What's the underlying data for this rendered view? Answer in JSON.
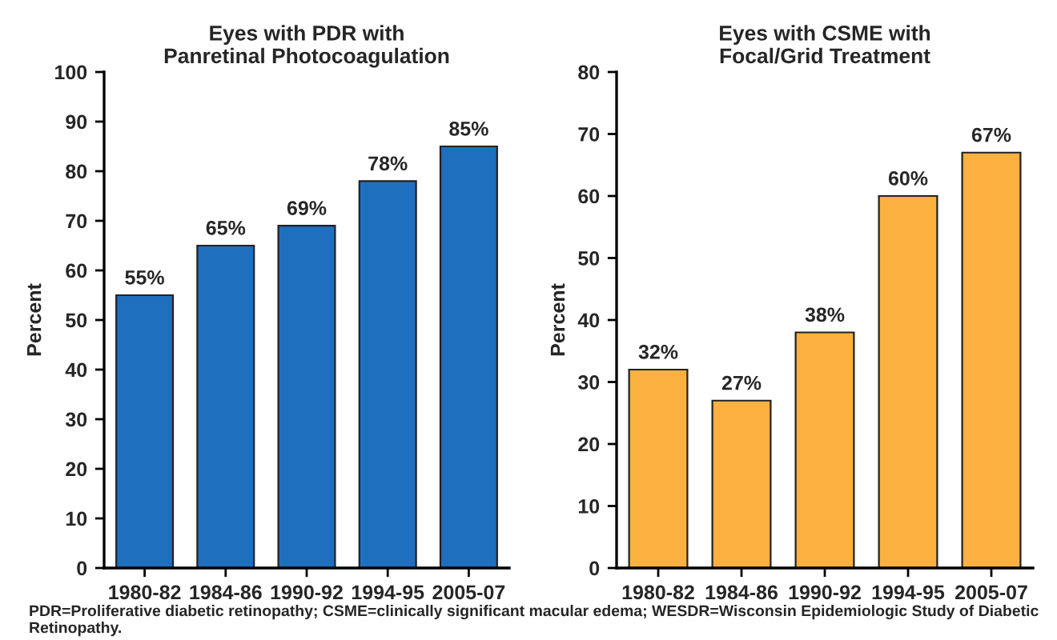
{
  "chart_data": [
    {
      "type": "bar",
      "title": "Eyes with PDR with\nPanretinal Photocoagulation",
      "ylabel": "Percent",
      "categories": [
        "1980-82",
        "1984-86",
        "1990-92",
        "1994-95",
        "2005-07"
      ],
      "values": [
        55,
        65,
        69,
        78,
        85
      ],
      "value_labels": [
        "55%",
        "65%",
        "69%",
        "78%",
        "85%"
      ],
      "color": "#1f6fbf",
      "ylim": [
        0,
        100
      ],
      "yticks": [
        0,
        10,
        20,
        30,
        40,
        50,
        60,
        70,
        80,
        90,
        100
      ],
      "grid": false,
      "legend": false,
      "annotations": [
        "PDR=Proliferative diabetic retinopathy; CSME=clinically significant macular edema; WESDR=Wisconsin Epidemiologic Study of Diabetic Retinopathy."
      ]
    },
    {
      "type": "bar",
      "title": "Eyes with CSME with\nFocal/Grid Treatment",
      "ylabel": "Percent",
      "categories": [
        "1980-82",
        "1984-86",
        "1990-92",
        "1994-95",
        "2005-07"
      ],
      "values": [
        32,
        27,
        38,
        60,
        67
      ],
      "value_labels": [
        "32%",
        "27%",
        "38%",
        "60%",
        "67%"
      ],
      "color": "#fbb040",
      "ylim": [
        0,
        80
      ],
      "yticks": [
        0,
        10,
        20,
        30,
        40,
        50,
        60,
        70,
        80
      ],
      "grid": false,
      "legend": false
    }
  ]
}
